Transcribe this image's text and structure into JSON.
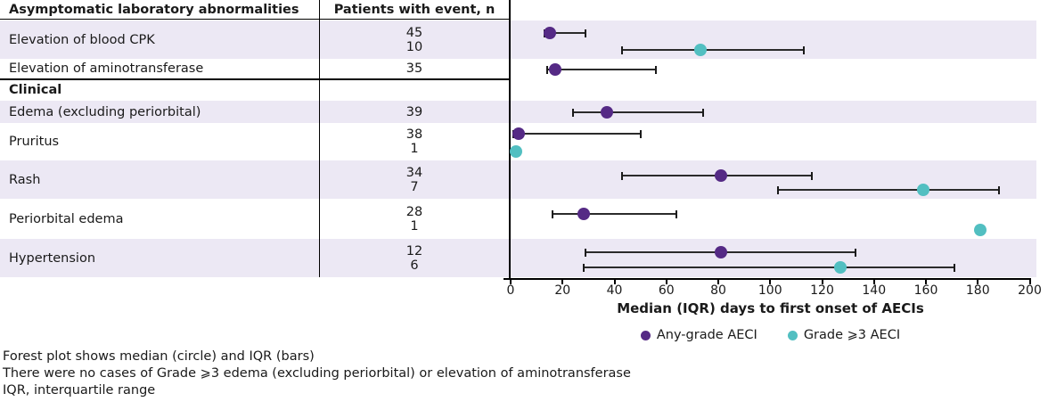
{
  "table": {
    "header_left": "Asymptomatic laboratory abnormalities",
    "header_right": "Patients with event, n"
  },
  "chart_data": {
    "type": "forest",
    "xlabel": "Median (IQR) days to first onset of AECIs",
    "xlim": [
      0,
      200
    ],
    "xticks": [
      0,
      20,
      40,
      60,
      80,
      100,
      120,
      140,
      160,
      180,
      200
    ],
    "legend": [
      {
        "label": "Any-grade AECI",
        "group": "any",
        "color": "#552a85"
      },
      {
        "label": "Grade ⩾3 AECI",
        "group": "grade3",
        "color": "#52bfc1"
      }
    ],
    "rows": [
      {
        "label": "Elevation of blood CPK",
        "counts": [
          45,
          10
        ],
        "series": [
          {
            "group": "any",
            "median": 15,
            "q1": 13,
            "q3": 29
          },
          {
            "group": "grade3",
            "median": 73,
            "q1": 43,
            "q3": 113
          }
        ]
      },
      {
        "label": "Elevation of aminotransferase",
        "counts": [
          35
        ],
        "series": [
          {
            "group": "any",
            "median": 17,
            "q1": 14,
            "q3": 56
          }
        ]
      },
      {
        "label": "Clinical",
        "section": true
      },
      {
        "label": "Edema (excluding periorbital)",
        "counts": [
          39
        ],
        "series": [
          {
            "group": "any",
            "median": 37,
            "q1": 24,
            "q3": 74
          }
        ]
      },
      {
        "label": "Pruritus",
        "counts": [
          38,
          1
        ],
        "series": [
          {
            "group": "any",
            "median": 3,
            "q1": 1,
            "q3": 50
          },
          {
            "group": "grade3",
            "median": 2
          }
        ]
      },
      {
        "label": "Rash",
        "counts": [
          34,
          7
        ],
        "series": [
          {
            "group": "any",
            "median": 81,
            "q1": 43,
            "q3": 116
          },
          {
            "group": "grade3",
            "median": 159,
            "q1": 103,
            "q3": 188
          }
        ]
      },
      {
        "label": "Periorbital edema",
        "counts": [
          28,
          1
        ],
        "series": [
          {
            "group": "any",
            "median": 28,
            "q1": 16,
            "q3": 64
          },
          {
            "group": "grade3",
            "median": 181
          }
        ]
      },
      {
        "label": "Hypertension",
        "counts": [
          12,
          6
        ],
        "series": [
          {
            "group": "any",
            "median": 81,
            "q1": 29,
            "q3": 133
          },
          {
            "group": "grade3",
            "median": 127,
            "q1": 28,
            "q3": 171
          }
        ]
      }
    ]
  },
  "footnotes": [
    "Forest plot shows median (circle) and IQR (bars)",
    "There were no cases of Grade ⩾3 edema (excluding periorbital) or elevation of aminotransferase",
    "IQR, interquartile range"
  ],
  "colors": {
    "band": "#ece8f4",
    "any_grade": "#552a85",
    "grade3": "#52bfc1",
    "axis": "#000000"
  }
}
